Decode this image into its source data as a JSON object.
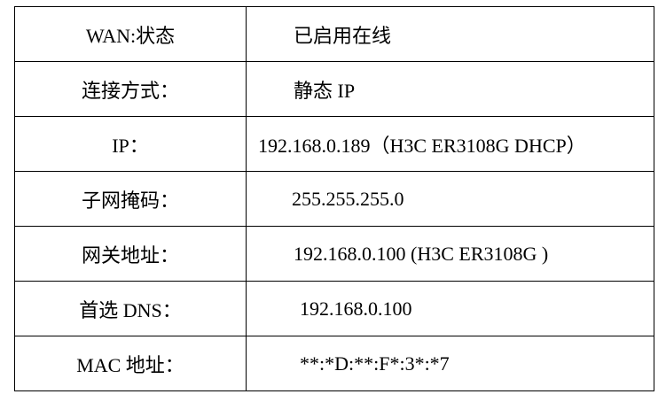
{
  "rows": [
    {
      "label": "WAN:状态",
      "value": "已启用在线"
    },
    {
      "label": "连接方式：",
      "value": "静态 IP"
    },
    {
      "label": "IP：",
      "value": "192.168.0.189（H3C ER3108G DHCP）"
    },
    {
      "label": "子网掩码：",
      "value": "255.255.255.0"
    },
    {
      "label": "网关地址：",
      "value": "192.168.0.100 (H3C ER3108G )"
    },
    {
      "label": "首选 DNS：",
      "value": "192.168.0.100"
    },
    {
      "label": "MAC 地址：",
      "value": "**:*D:**:F*:3*:*7"
    }
  ]
}
